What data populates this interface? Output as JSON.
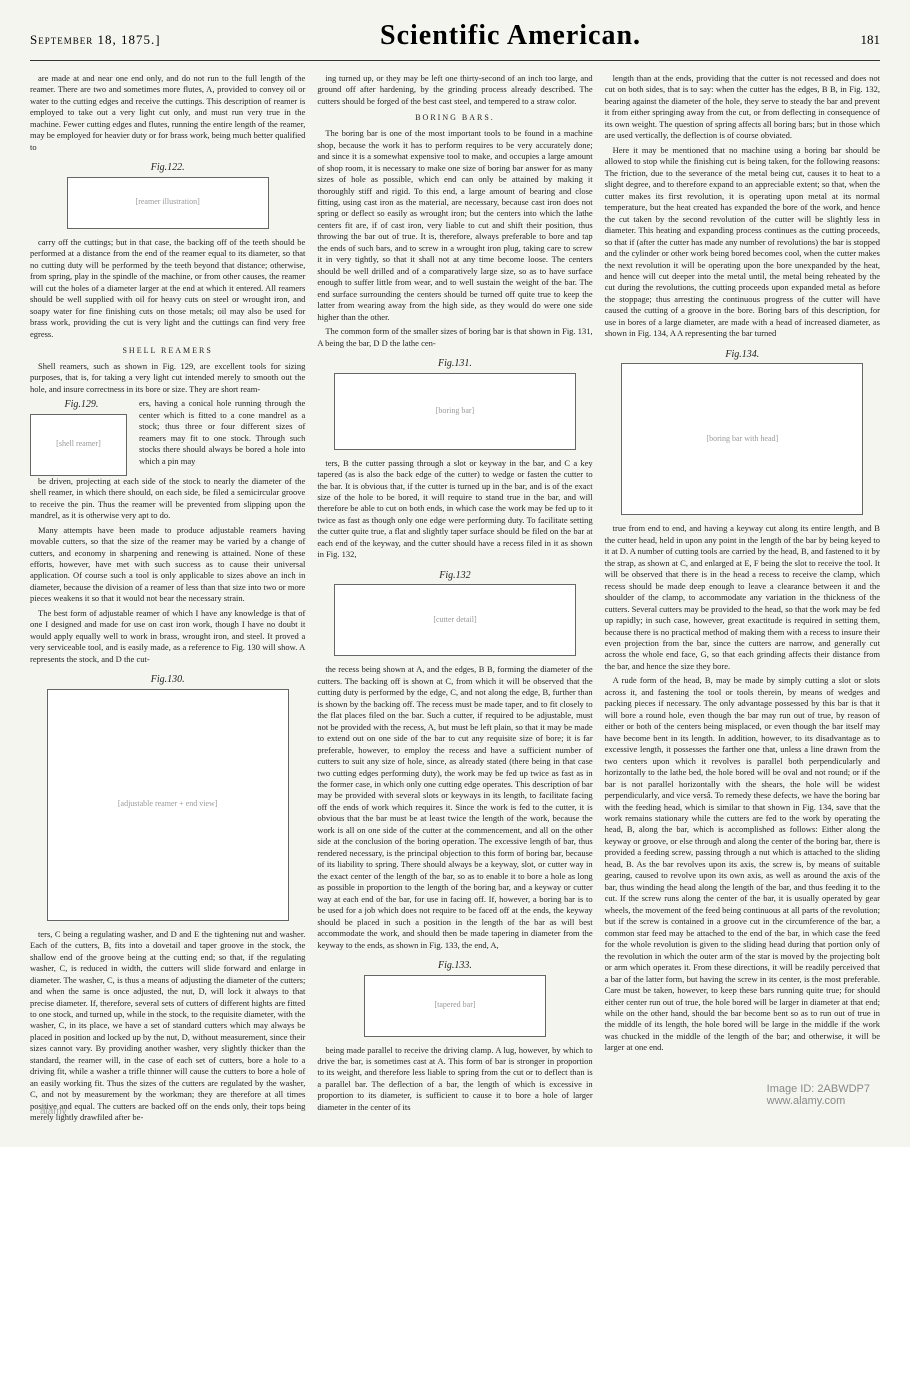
{
  "header": {
    "date": "September 18, 1875.]",
    "title": "Scientific American.",
    "page_number": "181"
  },
  "column1": {
    "para1": "are made at and near one end only, and do not run to the full length of the reamer. There are two and sometimes more flutes, A, provided to convey oil or water to the cutting edges and receive the cuttings. This description of reamer is employed to take out a very light cut only, and must run very true in the machine. Fewer cutting edges and flutes, running the entire length of the reamer, may be employed for heavier duty or for brass work, being much better qualified to",
    "fig122_label": "Fig.122.",
    "para2": "carry off the cuttings; but in that case, the backing off of the teeth should be performed at a distance from the end of the reamer equal to its diameter, so that no cutting duty will be performed by the teeth beyond that distance; otherwise, from spring, play in the spindle of the machine, or from other causes, the reamer will cut the holes of a diameter larger at the end at which it entered. All reamers should be well supplied with oil for heavy cuts on steel or wrought iron, and soapy water for fine finishing cuts on those metals; oil may also be used for brass work, providing the cut is very light and the cuttings can find very free egress.",
    "heading1": "SHELL REAMERS",
    "para3": "Shell reamers, such as shown in Fig. 129, are excellent tools for sizing purposes, that is, for taking a very light cut intended merely to smooth out the hole, and insure correctness in its bore or size. They are short ream-",
    "fig129_label": "Fig.129.",
    "para4": "ers, having a conical hole running through the center which is fitted to a cone mandrel as a stock; thus three or four different sizes of reamers may fit to one stock. Through such stocks there should always be bored a hole into which a pin may",
    "para5": "be driven, projecting at each side of the stock to nearly the diameter of the shell reamer, in which there should, on each side, be filed a semicircular groove to receive the pin. Thus the reamer will be prevented from slipping upon the mandrel, as it is otherwise very apt to do.",
    "para6": "Many attempts have been made to produce adjustable reamers having movable cutters, so that the size of the reamer may be varied by a change of cutters, and economy in sharpening and renewing is attained. None of these efforts, however, have met with such success as to cause their universal application. Of course such a tool is only applicable to sizes above an inch in diameter, because the division of a reamer of less than that size into two or more pieces weakens it so that it would not bear the necessary strain.",
    "para7": "The best form of adjustable reamer of which I have any knowledge is that of one I designed and made for use on cast iron work, though I have no doubt it would apply equally well to work in brass, wrought iron, and steel. It proved a very serviceable tool, and is easily made, as a reference to Fig. 130 will show. A represents the stock, and D the cut-",
    "fig130_label": "Fig.130.",
    "para8": "ters, C being a regulating washer, and D and E the tightening nut and washer. Each of the cutters, B, fits into a dovetail and taper groove in the stock, the shallow end of the groove being at the cutting end; so that, if the regulating washer, C, is reduced in width, the cutters will slide forward and enlarge in diameter. The washer, C, is thus a means of adjusting the diameter of the cutters; and when the same is once adjusted, the nut, D, will lock it always to that precise diameter. If, therefore, several sets of cutters of different hights are fitted to one stock, and turned up, while in the stock, to the requisite diameter, with the washer, C, in its place, we have a set of standard cutters which may always be placed in position and locked up by the nut, D, without measurement, since their sizes cannot vary. By providing another washer, very slightly thicker than the standard, the reamer will, in the case of each set of cutters, bore a hole to a driving fit, while a washer a trifle thinner will cause the cutters to bore a hole of an easily working fit. Thus the sizes of the cutters are regulated by the washer, C, and not by measurement by the workman; they are therefore at all times positive and equal. The cutters are backed off on the ends only, their tops being merely lightly drawfiled after be-"
  },
  "column2": {
    "para1": "ing turned up, or they may be left one thirty-second of an inch too large, and ground off after hardening, by the grinding process already described. The cutters should be forged of the best cast steel, and tempered to a straw color.",
    "heading1": "BORING BARS.",
    "para2": "The boring bar is one of the most important tools to be found in a machine shop, because the work it has to perform requires to be very accurately done; and since it is a somewhat expensive tool to make, and occupies a large amount of shop room, it is necessary to make one size of boring bar answer for as many sizes of hole as possible, which end can only be attained by making it thoroughly stiff and rigid. To this end, a large amount of bearing and close fitting, using cast iron as the material, are necessary, because cast iron does not spring or deflect so easily as wrought iron; but the centers into which the lathe centers fit are, if of cast iron, very liable to cut and shift their position, thus throwing the bar out of true. It is, therefore, always preferable to bore and tap the ends of such bars, and to screw in a wrought iron plug, taking care to screw it in very tightly, so that it shall not at any time become loose. The centers should be well drilled and of a comparatively large size, so as to have surface enough to suffer little from wear, and to well sustain the weight of the bar. The end surface surrounding the centers should be turned off quite true to keep the latter from wearing away from the high side, as they would do were one side higher than the other.",
    "para3": "The common form of the smaller sizes of boring bar is that shown in Fig. 131, A being the bar, D D the lathe cen-",
    "fig131_label": "Fig.131.",
    "para4": "ters, B the cutter passing through a slot or keyway in the bar, and C a key tapered (as is also the back edge of the cutter) to wedge or fasten the cutter to the bar. It is obvious that, if the cutter is turned up in the bar, and is of the exact size of the hole to be bored, it will require to stand true in the bar, and will therefore be able to cut on both ends, in which case the work may be fed up to it twice as fast as though only one edge were performing duty. To facilitate setting the cutter quite true, a flat and slightly taper surface should be filed on the bar at each end of the keyway, and the cutter should have a recess filed in it as shown in Fig. 132,",
    "fig132_label": "Fig.132",
    "para5": "the recess being shown at A, and the edges, B B, forming the diameter of the cutters. The backing off is shown at C, from which it will be observed that the cutting duty is performed by the edge, C, and not along the edge, B, further than is shown by the backing off. The recess must be made taper, and to fit closely to the flat places filed on the bar. Such a cutter, if required to be adjustable, must not be provided with the recess, A, but must be left plain, so that it may be made to extend out on one side of the bar to cut any requisite size of bore; it is far preferable, however, to employ the recess and have a sufficient number of cutters to suit any size of hole, since, as already stated (there being in that case two cutting edges performing duty), the work may be fed up twice as fast as in the former case, in which only one cutting edge operates. This description of bar may be provided with several slots or keyways in its length, to facilitate facing off the ends of work which requires it. Since the work is fed to the cutter, it is obvious that the bar must be at least twice the length of the work, because the work is all on one side of the cutter at the commencement, and all on the other side at the conclusion of the boring operation. The excessive length of bar, thus rendered necessary, is the principal objection to this form of boring bar, because of its liability to spring. There should always be a keyway, slot, or cutter way in the exact center of the length of the bar, so as to enable it to bore a hole as long as possible in proportion to the length of the boring bar, and a keyway or cutter way at each end of the bar, for use in facing off. If, however, a boring bar is to be used for a job which does not require to be faced off at the ends, the keyway should be placed in such a position in the length of the bar as will best accommodate the work, and should then be made tapering in diameter from the keyway to the ends, as shown in Fig. 133, the end, A,",
    "fig133_label": "Fig.133.",
    "para6": "being made parallel to receive the driving clamp. A lug, however, by which to drive the bar, is sometimes cast at A. This form of bar is stronger in proportion to its weight, and therefore less liable to spring from the cut or to deflect than is a parallel bar. The deflection of a bar, the length of which is excessive in proportion to its diameter, is sufficient to cause it to bore a hole of larger diameter in the center of its"
  },
  "column3": {
    "para1": "length than at the ends, providing that the cutter is not recessed and does not cut on both sides, that is to say: when the cutter has the edges, B B, in Fig. 132, bearing against the diameter of the hole, they serve to steady the bar and prevent it from either springing away from the cut, or from deflecting in consequence of its own weight. The question of spring affects all boring bars; but in those which are used vertically, the deflection is of course obviated.",
    "para2": "Here it may be mentioned that no machine using a boring bar should be allowed to stop while the finishing cut is being taken, for the following reasons: The friction, due to the severance of the metal being cut, causes it to heat to a slight degree, and to therefore expand to an appreciable extent; so that, when the cutter makes its first revolution, it is operating upon metal at its normal temperature, but the heat created has expanded the bore of the work, and hence the cut taken by the second revolution of the cutter will be slightly less in diameter. This heating and expanding process continues as the cutting proceeds, so that if (after the cutter has made any number of revolutions) the bar is stopped and the cylinder or other work being bored becomes cool, when the cutter makes the next revolution it will be operating upon the bore unexpanded by the heat, and hence will cut deeper into the metal until, the metal being reheated by the cut during the revolutions, the cutting proceeds upon expanded metal as before the stoppage; thus arresting the continuous progress of the cutter will have caused the cutting of a groove in the bore. Boring bars of this description, for use in bores of a large diameter, are made with a head of increased diameter, as shown in Fig. 134, A A representing the bar turned",
    "fig134_label": "Fig.134.",
    "para3": "true from end to end, and having a keyway cut along its entire length, and B the cutter head, held in upon any point in the length of the bar by being keyed to it at D. A number of cutting tools are carried by the head, B, and fastened to it by the strap, as shown at C, and enlarged at E, F being the slot to receive the tool. It will be observed that there is in the head a recess to receive the clamp, which recess should be made deep enough to leave a clearance between it and the shoulder of the clamp, to accommodate any variation in the thickness of the cutters. Several cutters may be provided to the head, so that the work may be fed up rapidly; in such case, however, great exactitude is required in setting them, because there is no practical method of making them with a recess to insure their even projection from the bar, since the cutters are narrow, and generally cut across the whole end face, G, so that each grinding affects their distance from the bar, and hence the size they bore.",
    "para4": "A rude form of the head, B, may be made by simply cutting a slot or slots across it, and fastening the tool or tools therein, by means of wedges and packing pieces if necessary. The only advantage possessed by this bar is that it will bore a round hole, even though the bar may run out of true, by reason of either or both of the centers being misplaced, or even though the bar itself may have become bent in its length. In addition, however, to its disadvantage as to excessive length, it possesses the farther one that, unless a line drawn from the two centers upon which it revolves is parallel both perpendicularly and horizontally to the lathe bed, the hole bored will be oval and not round; or if the bar is not parallel horizontally with the shears, the hole will be widest perpendicularly, and vice versâ. To remedy these defects, we have the boring bar with the feeding head, which is similar to that shown in Fig. 134, save that the work remains stationary while the cutters are fed to the work by operating the head, B, along the bar, which is accomplished as follows: Either along the keyway or groove, or else through and along the center of the boring bar, there is provided a feeding screw, passing through a nut which is attached to the sliding head, B. As the bar revolves upon its axis, the screw is, by means of suitable gearing, caused to revolve upon its own axis, as well as around the axis of the bar, thus winding the head along the length of the bar, and thus feeding it to the cut. If the screw runs along the center of the bar, it is usually operated by gear wheels, the movement of the feed being continuous at all parts of the revolution; but if the screw is contained in a groove cut in the circumference of the bar, a common star feed may be attached to the end of the bar, in which case the feed for the whole revolution is given to the sliding head during that portion only of the revolution in which the outer arm of the star is moved by the projecting bolt or arm which operates it. From these directions, it will be readily perceived that a bar of the latter form, but having the screw in its center, is the most preferable. Care must be taken, however, to keep these bars running quite true; for should either center run out of true, the hole bored will be larger in diameter at that end; while on the other hand, should the bar become bent so as to run out of true in the middle of its length, the hole bored will be large in the middle if the work was chucked in the middle of the length of the bar; and otherwise, it will be larger at one end."
  },
  "watermark": {
    "image_id": "Image ID: 2ABWDP7",
    "source": "www.alamy.com",
    "logo": "alamy"
  }
}
